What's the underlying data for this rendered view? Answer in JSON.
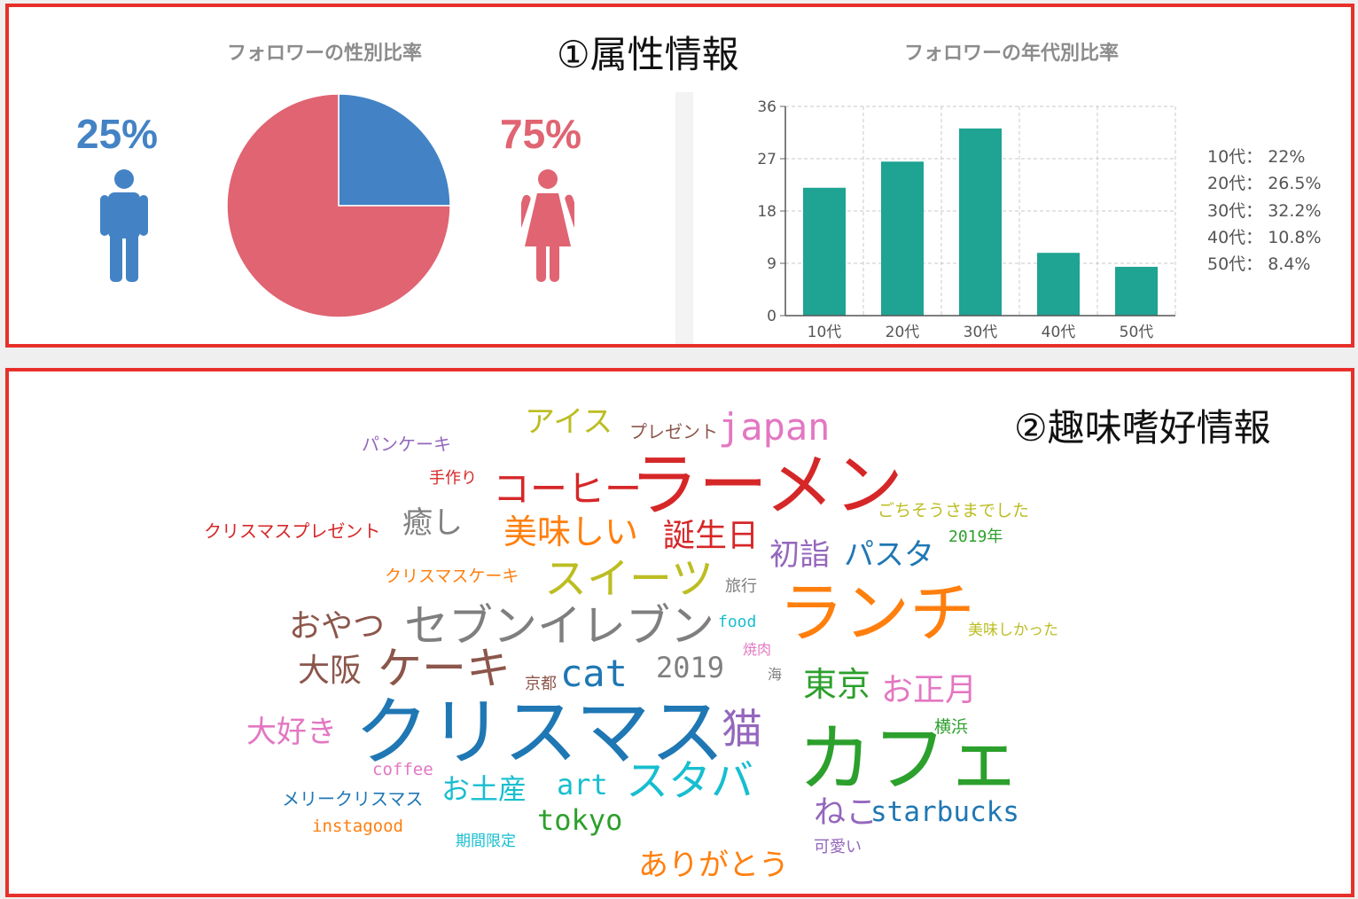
{
  "section1": {
    "title": "①属性情報"
  },
  "section2": {
    "title": "②趣味嗜好情報"
  },
  "gender": {
    "title": "フォロワーの性別比率",
    "male_pct": "25%",
    "female_pct": "75%",
    "colors": {
      "male": "#4383c5",
      "female": "#e06472"
    },
    "icons": {
      "male": "male-person-icon",
      "female": "female-person-icon"
    }
  },
  "age": {
    "title": "フォロワーの年代別比率",
    "legend": [
      "10代： 22%",
      "20代： 26.5%",
      "30代： 32.2%",
      "40代： 10.8%",
      "50代： 8.4%"
    ]
  },
  "chart_data": [
    {
      "type": "pie",
      "labels": [
        "男性",
        "女性"
      ],
      "values": [
        25,
        75
      ],
      "colors": [
        "#4383c5",
        "#e06472"
      ]
    },
    {
      "type": "bar",
      "categories": [
        "10代",
        "20代",
        "30代",
        "40代",
        "50代"
      ],
      "values": [
        22,
        26.5,
        32.2,
        10.8,
        8.4
      ],
      "yticks": [
        "0",
        "9",
        "18",
        "27",
        "36"
      ],
      "ylim": [
        0,
        36
      ],
      "grid": true,
      "bar_color": "#1fa392"
    }
  ],
  "wordcloud": [
    {
      "text": "ラーメン",
      "color": "#d62728"
    },
    {
      "text": "クリスマス",
      "color": "#1f77b4"
    },
    {
      "text": "カフェ",
      "color": "#2ca02c"
    },
    {
      "text": "ランチ",
      "color": "#ff7f0e"
    },
    {
      "text": "セブンイレブン",
      "color": "#7f7f7f"
    },
    {
      "text": "ケーキ",
      "color": "#8c564b"
    },
    {
      "text": "スイーツ",
      "color": "#bcbd22"
    },
    {
      "text": "スタバ",
      "color": "#17becf"
    },
    {
      "text": "japan",
      "color": "#e377c2"
    },
    {
      "text": "コーヒー",
      "color": "#d62728"
    },
    {
      "text": "美味しい",
      "color": "#ff7f0e"
    },
    {
      "text": "誕生日",
      "color": "#d62728"
    },
    {
      "text": "cat",
      "color": "#1f77b4"
    },
    {
      "text": "猫",
      "color": "#9467bd"
    },
    {
      "text": "東京",
      "color": "#2ca02c"
    },
    {
      "text": "お正月",
      "color": "#e377c2"
    },
    {
      "text": "大阪",
      "color": "#8c564b"
    },
    {
      "text": "おやつ",
      "color": "#8c564b"
    },
    {
      "text": "アイス",
      "color": "#bcbd22"
    },
    {
      "text": "パスタ",
      "color": "#1f77b4"
    },
    {
      "text": "初詣",
      "color": "#9467bd"
    },
    {
      "text": "癒し",
      "color": "#7f7f7f"
    },
    {
      "text": "2019",
      "color": "#7f7f7f"
    },
    {
      "text": "大好き",
      "color": "#e377c2"
    },
    {
      "text": "お土産",
      "color": "#17becf"
    },
    {
      "text": "art",
      "color": "#17becf"
    },
    {
      "text": "tokyo",
      "color": "#2ca02c"
    },
    {
      "text": "ありがとう",
      "color": "#ff7f0e"
    },
    {
      "text": "ねこ",
      "color": "#9467bd"
    },
    {
      "text": "starbucks",
      "color": "#1f77b4"
    },
    {
      "text": "プレゼント",
      "color": "#8c564b"
    },
    {
      "text": "パンケーキ",
      "color": "#9467bd"
    },
    {
      "text": "手作り",
      "color": "#d62728"
    },
    {
      "text": "クリスマスプレゼント",
      "color": "#d62728"
    },
    {
      "text": "ごちそうさまでした",
      "color": "#bcbd22"
    },
    {
      "text": "2019年",
      "color": "#2ca02c"
    },
    {
      "text": "クリスマスケーキ",
      "color": "#ff7f0e"
    },
    {
      "text": "旅行",
      "color": "#7f7f7f"
    },
    {
      "text": "food",
      "color": "#17becf"
    },
    {
      "text": "美味しかった",
      "color": "#bcbd22"
    },
    {
      "text": "焼肉",
      "color": "#e377c2"
    },
    {
      "text": "京都",
      "color": "#8c564b"
    },
    {
      "text": "海",
      "color": "#7f7f7f"
    },
    {
      "text": "横浜",
      "color": "#2ca02c"
    },
    {
      "text": "coffee",
      "color": "#e377c2"
    },
    {
      "text": "メリークリスマス",
      "color": "#1f77b4"
    },
    {
      "text": "instagood",
      "color": "#ff7f0e"
    },
    {
      "text": "期間限定",
      "color": "#17becf"
    },
    {
      "text": "可愛い",
      "color": "#9467bd"
    }
  ]
}
